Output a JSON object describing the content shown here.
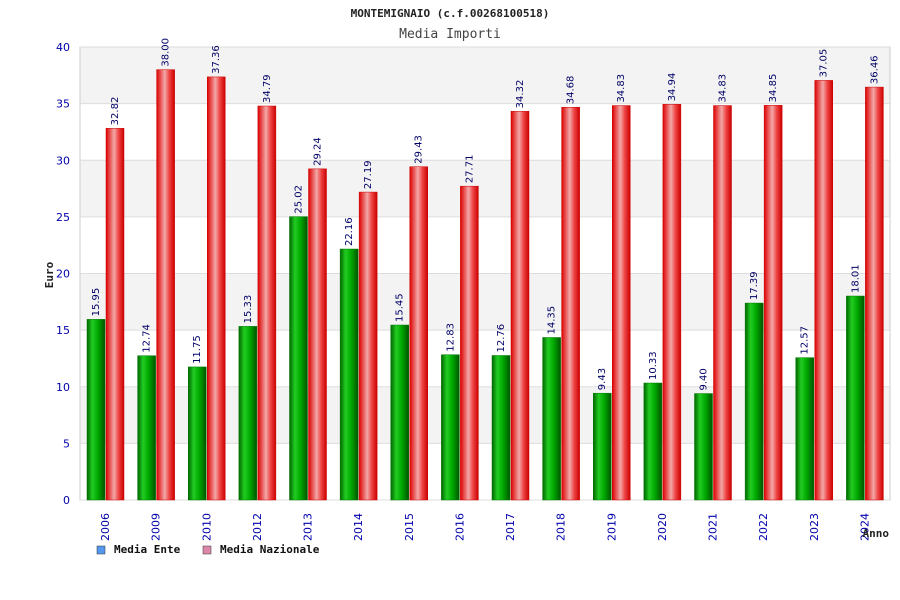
{
  "chart_data": {
    "type": "bar",
    "title": "MONTEMIGNAIO (c.f.00268100518)",
    "subtitle": "Media Importi",
    "xlabel": "Anno",
    "ylabel": "Euro",
    "ylim": [
      0,
      40
    ],
    "yticks": [
      0,
      5,
      10,
      15,
      20,
      25,
      30,
      35,
      40
    ],
    "grid": true,
    "legend_position": "bottom-left",
    "categories": [
      "2006",
      "2009",
      "2010",
      "2012",
      "2013",
      "2014",
      "2015",
      "2016",
      "2017",
      "2018",
      "2019",
      "2020",
      "2021",
      "2022",
      "2023",
      "2024"
    ],
    "series": [
      {
        "name": "Media Ente",
        "color": "#00aa00",
        "legend_color": "#5599ee",
        "values": [
          15.95,
          12.74,
          11.75,
          15.33,
          25.02,
          22.16,
          15.45,
          12.83,
          12.76,
          14.35,
          9.43,
          10.33,
          9.4,
          17.39,
          12.57,
          18.01
        ],
        "labels": [
          "15.95",
          "12.74",
          "11.75",
          "15.33",
          "25.02",
          "22.16",
          "15.45",
          "12.83",
          "12.76",
          "14.35",
          "9.43",
          "10.33",
          "9.40",
          "17.39",
          "12.57",
          "18.01"
        ]
      },
      {
        "name": "Media Nazionale",
        "color": "#ee1111",
        "legend_color": "#dd88aa",
        "values": [
          32.82,
          38.0,
          37.36,
          34.79,
          29.24,
          27.19,
          29.43,
          27.71,
          34.32,
          34.68,
          34.83,
          34.94,
          34.83,
          34.85,
          37.05,
          36.46
        ],
        "labels": [
          "32.82",
          "38.00",
          "37.36",
          "34.79",
          "29.24",
          "27.19",
          "29.43",
          "27.71",
          "34.32",
          "34.68",
          "34.83",
          "34.94",
          "34.83",
          "34.85",
          "37.05",
          "36.46"
        ]
      }
    ]
  }
}
